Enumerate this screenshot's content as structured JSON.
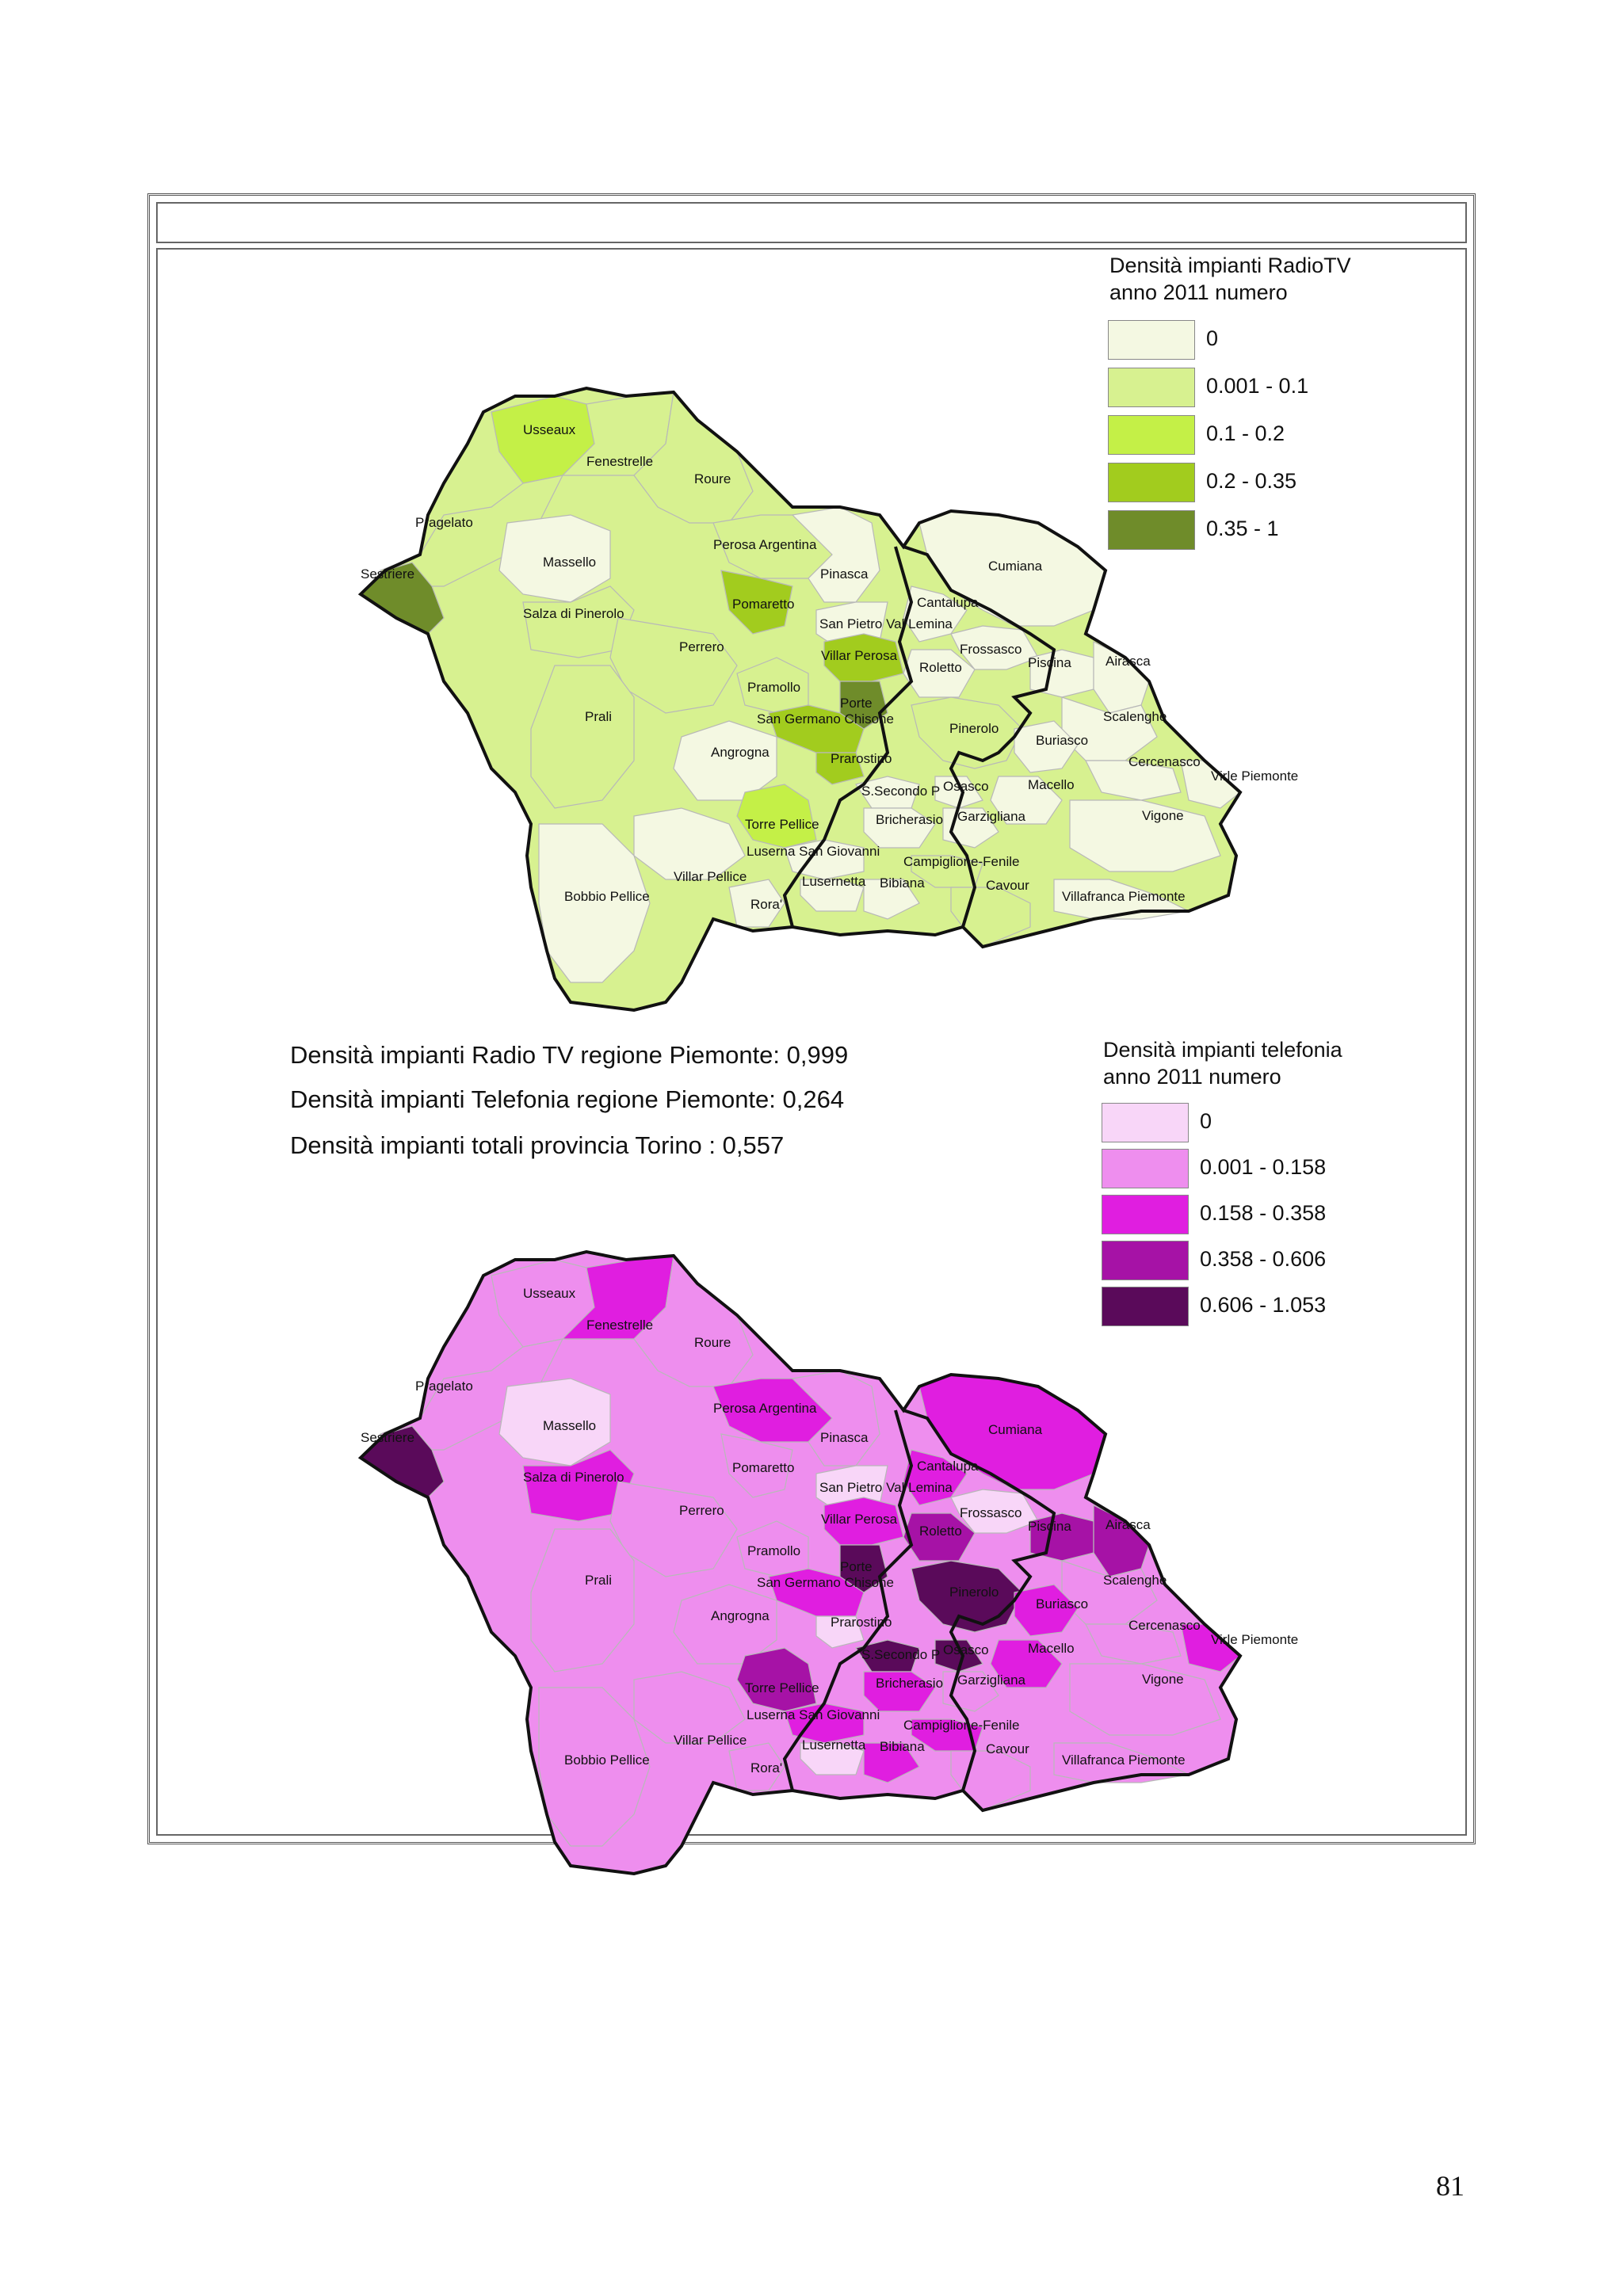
{
  "map_top": {
    "legend": {
      "title_line1": "Densità impianti RadioTV",
      "title_line2": "anno 2011 numero",
      "classes": [
        {
          "label": "0",
          "color": "#F4F8E2"
        },
        {
          "label": "0.001 - 0.1",
          "color": "#D7F190"
        },
        {
          "label": "0.1 - 0.2",
          "color": "#C4F047"
        },
        {
          "label": "0.2 - 0.35",
          "color": "#A2CC1E"
        },
        {
          "label": "0.35 - 1",
          "color": "#6F8C2A"
        }
      ]
    }
  },
  "stats": [
    "Densità impianti Radio TV regione Piemonte: 0,999",
    "Densità impianti Telefonia regione Piemonte: 0,264",
    "Densità impianti totali provincia Torino : 0,557"
  ],
  "map_bottom": {
    "legend": {
      "title_line1": "Densità impianti telefonia",
      "title_line2": "anno 2011 numero",
      "classes": [
        {
          "label": "0",
          "color": "#F8D6F8"
        },
        {
          "label": "0.001 - 0.158",
          "color": "#EE8EEE"
        },
        {
          "label": "0.158 - 0.358",
          "color": "#E01EE0"
        },
        {
          "label": "0.358 - 0.606",
          "color": "#A612A6"
        },
        {
          "label": "0.606 - 1.053",
          "color": "#5A0A5A"
        }
      ]
    }
  },
  "municipalities": {
    "usseaux": "Usseaux",
    "fenestrelle": "Fenestrelle",
    "roure": "Roure",
    "pragelato": "Pragelato",
    "sestriere": "Sestriere",
    "massello": "Massello",
    "salza": "Salza di Pinerolo",
    "perosa": "Perosa Argentina",
    "pinasca": "Pinasca",
    "pomaretto": "Pomaretto",
    "san_pietro": "San Pietro Val Lemina",
    "cantalupa": "Cantalupa",
    "cumiana": "Cumiana",
    "frossasco": "Frossasco",
    "roletto": "Roletto",
    "piscina": "Piscina",
    "airasca": "Airasca",
    "perrero": "Perrero",
    "villar_perosa": "Villar Perosa",
    "pramollo": "Pramollo",
    "porte": "Porte",
    "san_germano": "San Germano Chisone",
    "prali": "Prali",
    "pinerolo": "Pinerolo",
    "scalenghe": "Scalenghe",
    "buriasco": "Buriasco",
    "angrogna": "Angrogna",
    "prarostino": "Prarostino",
    "cercenasco": "Cercenasco",
    "virle": "Virle Piemonte",
    "s_secondo": "S.Secondo P",
    "osasco": "Osasco",
    "macello": "Macello",
    "torre_pellice": "Torre Pellice",
    "bricherasio": "Bricherasio",
    "garzigliana": "Garzigliana",
    "vigone": "Vigone",
    "luserna_sg": "Luserna San Giovanni",
    "campiglione": "Campiglione-Fenile",
    "villar_pellice": "Villar Pellice",
    "lusernetta": "Lusernetta",
    "bibiana": "Bibiana",
    "cavour": "Cavour",
    "bobbio": "Bobbio Pellice",
    "rora": "Rora'",
    "villafranca": "Villafranca Piemonte"
  },
  "page_number": "81"
}
